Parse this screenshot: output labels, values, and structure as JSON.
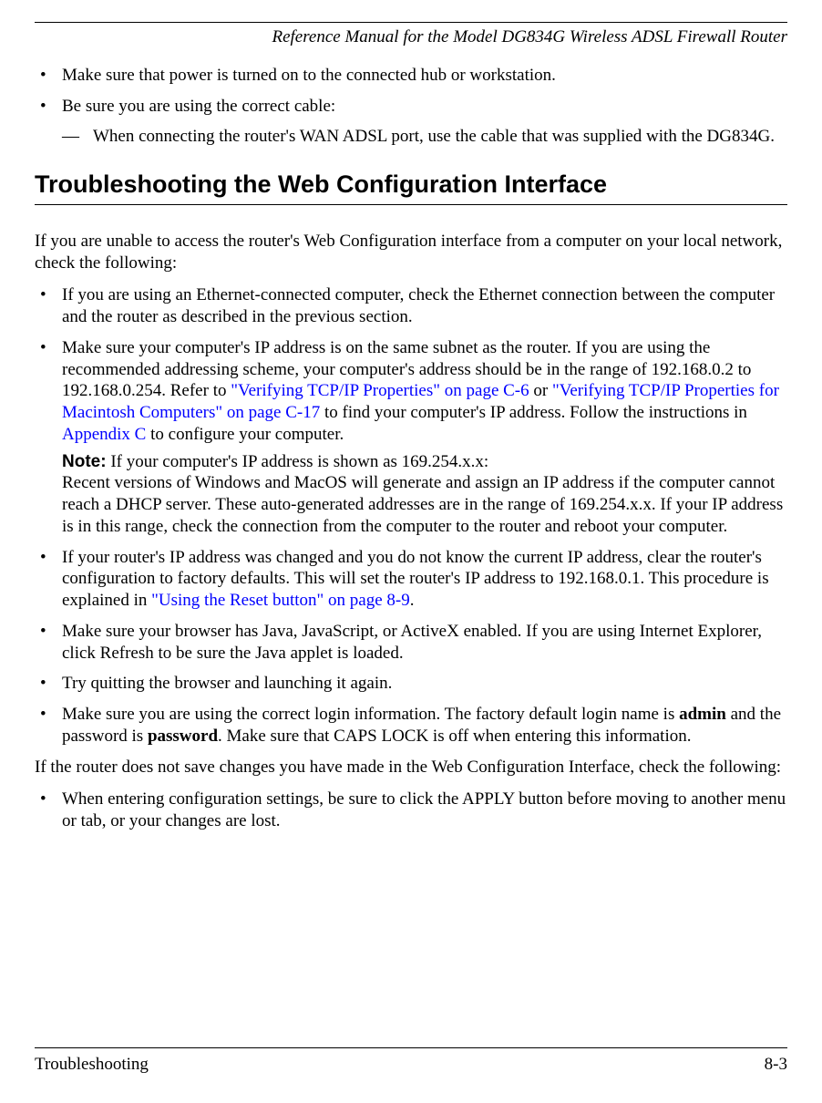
{
  "header": {
    "title": "Reference Manual for the Model DG834G Wireless ADSL Firewall Router"
  },
  "top_bullets": {
    "b1": "Make sure that power is turned on to the connected hub or workstation.",
    "b2": "Be sure you are using the correct cable:",
    "b2_dash1": "When connecting the router's WAN ADSL port, use the cable that was supplied with the DG834G."
  },
  "section": {
    "heading": "Troubleshooting the Web Configuration Interface"
  },
  "intro": "If you are unable to access the router's Web Configuration interface from a computer on your local network, check the following:",
  "list": {
    "i1": "If you are using an Ethernet-connected computer, check the Ethernet connection between the computer and the router as described in the previous section.",
    "i2_a": "Make sure your computer's IP address is on the same subnet as the router. If you are using the recommended addressing scheme, your computer's address should be in the range of 192.168.0.2 to 192.168.0.254. Refer to ",
    "i2_link1": "\"Verifying TCP/IP Properties\" on page C-6",
    "i2_b": " or ",
    "i2_link2": "\"Verifying TCP/IP Properties for Macintosh Computers\" on page C-17",
    "i2_c": " to find your computer's IP address. Follow the instructions in ",
    "i2_link3": "Appendix C",
    "i2_d": " to configure your computer.",
    "i2_note_label": "Note:",
    "i2_note": " If your computer's IP address is shown as 169.254.x.x:",
    "i2_note_body": "Recent versions of Windows and MacOS will generate and assign an IP address if the computer cannot reach a DHCP server. These auto-generated addresses are in the range of 169.254.x.x. If your IP address is in this range, check the connection from the computer to the router and reboot your computer.",
    "i3_a": "If your router's IP address was changed and you do not know the current IP address, clear the router's configuration to factory defaults. This will set the router's IP address to 192.168.0.1. This procedure is explained in ",
    "i3_link": "\"Using the Reset button\" on page 8-9",
    "i3_b": ".",
    "i4": "Make sure your browser has Java, JavaScript, or ActiveX enabled. If you are using Internet Explorer, click Refresh to be sure the Java applet is loaded.",
    "i5": "Try quitting the browser and launching it again.",
    "i6_a": "Make sure you are using the correct login information. The factory default login name is ",
    "i6_bold1": "admin",
    "i6_b": " and the password is ",
    "i6_bold2": "password",
    "i6_c": ". Make sure that CAPS LOCK is off when entering this information."
  },
  "outro": "If the router does not save changes you have made in the Web Configuration Interface, check the following:",
  "outro_list": {
    "o1": "When entering configuration settings, be sure to click the APPLY button before moving to another menu or tab, or your changes are lost."
  },
  "footer": {
    "left": "Troubleshooting",
    "right": "8-3"
  }
}
